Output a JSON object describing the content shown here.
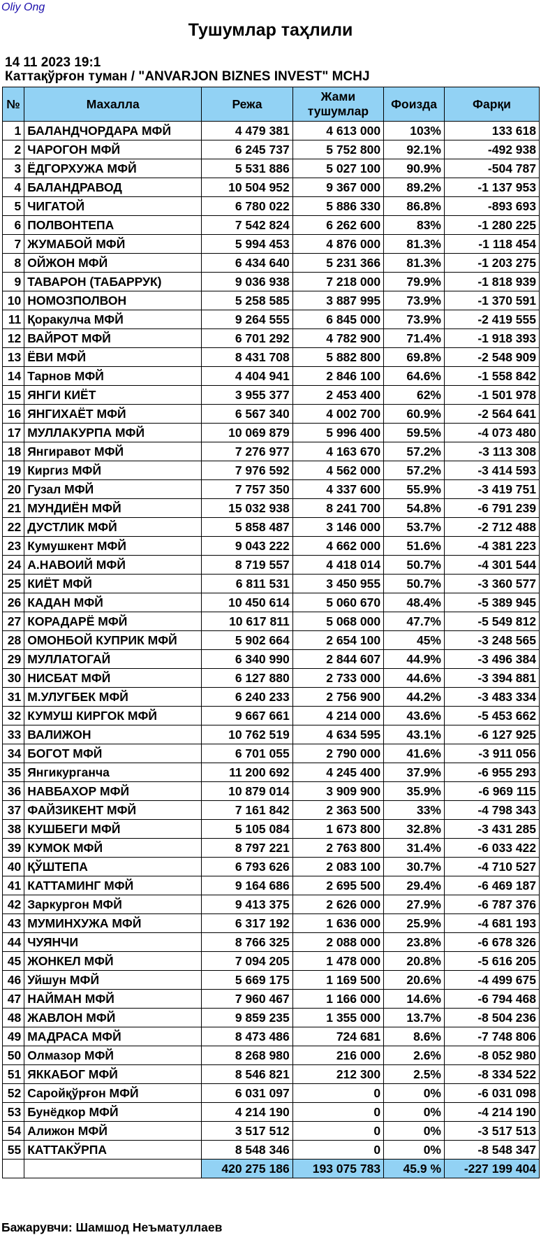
{
  "brand": "Oliy Ong",
  "title": "Тушумлар таҳлили",
  "report_datetime": "14 11 2023 19:1",
  "report_subtitle": "Каттақўрғон туман / \"ANVARJON BIZNES INVEST\" MCHJ",
  "table": {
    "headers": [
      "№",
      "Махалла",
      "Режа",
      "Жами тушумлар",
      "Фоизда",
      "Фарқи"
    ],
    "rows": [
      [
        "1",
        "БАЛАНДЧОРДАРА МФЙ",
        "4 479 381",
        "4 613 000",
        "103%",
        "133 618"
      ],
      [
        "2",
        "ЧАРОГОН МФЙ",
        "6 245 737",
        "5 752 800",
        "92.1%",
        "-492 938"
      ],
      [
        "3",
        "ЁДГОРХУЖА МФЙ",
        "5 531 886",
        "5 027 100",
        "90.9%",
        "-504 787"
      ],
      [
        "4",
        "БАЛАНДРАВОД",
        "10 504 952",
        "9 367 000",
        "89.2%",
        "-1 137 953"
      ],
      [
        "5",
        "ЧИГАТОЙ",
        "6 780 022",
        "5 886 330",
        "86.8%",
        "-893 693"
      ],
      [
        "6",
        "ПОЛВОНТЕПА",
        "7 542 824",
        "6 262 600",
        "83%",
        "-1 280 225"
      ],
      [
        "7",
        "ЖУМАБОЙ МФЙ",
        "5 994 453",
        "4 876 000",
        "81.3%",
        "-1 118 454"
      ],
      [
        "8",
        "ОЙЖОН МФЙ",
        "6 434 640",
        "5 231 366",
        "81.3%",
        "-1 203 275"
      ],
      [
        "9",
        "ТАВАРОН (ТАБАРРУК)",
        "9 036 938",
        "7 218 000",
        "79.9%",
        "-1 818 939"
      ],
      [
        "10",
        "НОМОЗПОЛВОН",
        "5 258 585",
        "3 887 995",
        "73.9%",
        "-1 370 591"
      ],
      [
        "11",
        "Қоракулча МФЙ",
        "9 264 555",
        "6 845 000",
        "73.9%",
        "-2 419 555"
      ],
      [
        "12",
        "ВАЙРОТ МФЙ",
        "6 701 292",
        "4 782 900",
        "71.4%",
        "-1 918 393"
      ],
      [
        "13",
        "ЁВИ МФЙ",
        "8 431 708",
        "5 882 800",
        "69.8%",
        "-2 548 909"
      ],
      [
        "14",
        "Тарнов МФЙ",
        "4 404 941",
        "2 846 100",
        "64.6%",
        "-1 558 842"
      ],
      [
        "15",
        "ЯНГИ КИЁТ",
        "3 955 377",
        "2 453 400",
        "62%",
        "-1 501 978"
      ],
      [
        "16",
        "ЯНГИХАЁТ МФЙ",
        "6 567 340",
        "4 002 700",
        "60.9%",
        "-2 564 641"
      ],
      [
        "17",
        "МУЛЛАКУРПА МФЙ",
        "10 069 879",
        "5 996 400",
        "59.5%",
        "-4 073 480"
      ],
      [
        "18",
        "Янгиравот МФЙ",
        "7 276 977",
        "4 163 670",
        "57.2%",
        "-3 113 308"
      ],
      [
        "19",
        "Киргиз МФЙ",
        "7 976 592",
        "4 562 000",
        "57.2%",
        "-3 414 593"
      ],
      [
        "20",
        "Гузал МФЙ",
        "7 757 350",
        "4 337 600",
        "55.9%",
        "-3 419 751"
      ],
      [
        "21",
        "МУНДИЁН МФЙ",
        "15 032 938",
        "8 241 700",
        "54.8%",
        "-6 791 239"
      ],
      [
        "22",
        "ДУСТЛИК МФЙ",
        "5 858 487",
        "3 146 000",
        "53.7%",
        "-2 712 488"
      ],
      [
        "23",
        "Кумушкент МФЙ",
        "9 043 222",
        "4 662 000",
        "51.6%",
        "-4 381 223"
      ],
      [
        "24",
        "А.НАВОИЙ МФЙ",
        "8 719 557",
        "4 418 014",
        "50.7%",
        "-4 301 544"
      ],
      [
        "25",
        "КИЁТ МФЙ",
        "6 811 531",
        "3 450 955",
        "50.7%",
        "-3 360 577"
      ],
      [
        "26",
        "КАДАН МФЙ",
        "10 450 614",
        "5 060 670",
        "48.4%",
        "-5 389 945"
      ],
      [
        "27",
        "КОРАДАРЁ МФЙ",
        "10 617 811",
        "5 068 000",
        "47.7%",
        "-5 549 812"
      ],
      [
        "28",
        "ОМОНБОЙ КУПРИК МФЙ",
        "5 902 664",
        "2 654 100",
        "45%",
        "-3 248 565"
      ],
      [
        "29",
        "МУЛЛАТОГАЙ",
        "6 340 990",
        "2 844 607",
        "44.9%",
        "-3 496 384"
      ],
      [
        "30",
        "НИСБАТ МФЙ",
        "6 127 880",
        "2 733 000",
        "44.6%",
        "-3 394 881"
      ],
      [
        "31",
        "М.УЛУГБЕК МФЙ",
        "6 240 233",
        "2 756 900",
        "44.2%",
        "-3 483 334"
      ],
      [
        "32",
        "КУМУШ КИРГОК МФЙ",
        "9 667 661",
        "4 214 000",
        "43.6%",
        "-5 453 662"
      ],
      [
        "33",
        "ВАЛИЖОН",
        "10 762 519",
        "4 634 595",
        "43.1%",
        "-6 127 925"
      ],
      [
        "34",
        "БОГОТ МФЙ",
        "6 701 055",
        "2 790 000",
        "41.6%",
        "-3 911 056"
      ],
      [
        "35",
        "Янгикурганча",
        "11 200 692",
        "4 245 400",
        "37.9%",
        "-6 955 293"
      ],
      [
        "36",
        "НАВБАХОР МФЙ",
        "10 879 014",
        "3 909 900",
        "35.9%",
        "-6 969 115"
      ],
      [
        "37",
        "ФАЙЗИКЕНТ МФЙ",
        "7 161 842",
        "2 363 500",
        "33%",
        "-4 798 343"
      ],
      [
        "38",
        "КУШБЕГИ МФЙ",
        "5 105 084",
        "1 673 800",
        "32.8%",
        "-3 431 285"
      ],
      [
        "39",
        "КУМОК МФЙ",
        "8 797 221",
        "2 763 800",
        "31.4%",
        "-6 033 422"
      ],
      [
        "40",
        "ҚЎШТЕПА",
        "6 793 626",
        "2 083 100",
        "30.7%",
        "-4 710 527"
      ],
      [
        "41",
        "КАТТАМИНГ МФЙ",
        "9 164 686",
        "2 695 500",
        "29.4%",
        "-6 469 187"
      ],
      [
        "42",
        "Заркургон МФЙ",
        "9 413 375",
        "2 626 000",
        "27.9%",
        "-6 787 376"
      ],
      [
        "43",
        "МУМИНХУЖА МФЙ",
        "6 317 192",
        "1 636 000",
        "25.9%",
        "-4 681 193"
      ],
      [
        "44",
        "ЧУЯНЧИ",
        "8 766 325",
        "2 088 000",
        "23.8%",
        "-6 678 326"
      ],
      [
        "45",
        "ЖОНКЕЛ МФЙ",
        "7 094 205",
        "1 478 000",
        "20.8%",
        "-5 616 205"
      ],
      [
        "46",
        "Уйшун МФЙ",
        "5 669 175",
        "1 169 500",
        "20.6%",
        "-4 499 675"
      ],
      [
        "47",
        "НАЙМАН МФЙ",
        "7 960 467",
        "1 166 000",
        "14.6%",
        "-6 794 468"
      ],
      [
        "48",
        "ЖАВЛОН МФЙ",
        "9 859 235",
        "1 355 000",
        "13.7%",
        "-8 504 236"
      ],
      [
        "49",
        "МАДРАСА МФЙ",
        "8 473 486",
        "724 681",
        "8.6%",
        "-7 748 806"
      ],
      [
        "50",
        "Олмазор МФЙ",
        "8 268 980",
        "216 000",
        "2.6%",
        "-8 052 980"
      ],
      [
        "51",
        "ЯККАБОГ МФЙ",
        "8 546 821",
        "212 300",
        "2.5%",
        "-8 334 522"
      ],
      [
        "52",
        "Саройқўрғон МФЙ",
        "6 031 097",
        "0",
        "0%",
        "-6 031 098"
      ],
      [
        "53",
        "Бунёдкор МФЙ",
        "4 214 190",
        "0",
        "0%",
        "-4 214 190"
      ],
      [
        "54",
        "Алижон МФЙ",
        "3 517 512",
        "0",
        "0%",
        "-3 517 513"
      ],
      [
        "55",
        "КАТТАКЎРПА",
        "8 548 346",
        "0",
        "0%",
        "-8 548 347"
      ]
    ],
    "totals": [
      "420 275 186",
      "193 075 783",
      "45.9 %",
      "-227 199 404"
    ]
  },
  "footer": "Бажарувчи: Шамшод Неъматуллаев",
  "colors": {
    "header_bg": "#92d2f4",
    "link": "#1a0dab"
  }
}
